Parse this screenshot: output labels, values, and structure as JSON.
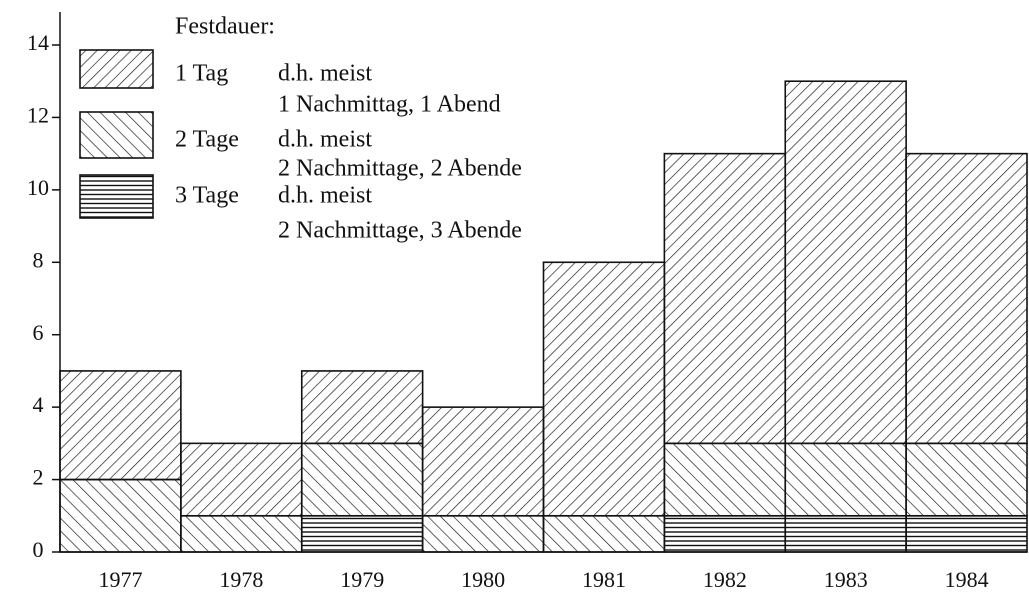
{
  "chart_data": {
    "type": "stacked-bar",
    "legend_title": "Festdauer:",
    "categories": [
      "1977",
      "1978",
      "1979",
      "1980",
      "1981",
      "1982",
      "1983",
      "1984"
    ],
    "series": [
      {
        "name": "3 Tage",
        "description": [
          "d.h. meist",
          "2 Nachmittage, 3 Abende"
        ],
        "color": "#111111",
        "values": [
          0,
          0,
          1,
          0,
          0,
          1,
          1,
          1
        ]
      },
      {
        "name": "2 Tage",
        "description": [
          "d.h. meist",
          "2 Nachmittage, 2 Abende"
        ],
        "color": "#111111",
        "values": [
          2,
          1,
          2,
          1,
          1,
          2,
          2,
          2
        ]
      },
      {
        "name": "1 Tag",
        "description": [
          "d.h. meist",
          "1 Nachmittag, 1 Abend"
        ],
        "color": "#111111",
        "values": [
          3,
          2,
          2,
          3,
          7,
          8,
          10,
          8
        ]
      }
    ],
    "ylim": [
      0,
      14
    ],
    "yticks": [
      0,
      2,
      4,
      6,
      8,
      10,
      12,
      14
    ],
    "grid": false,
    "legend": "upper left"
  }
}
